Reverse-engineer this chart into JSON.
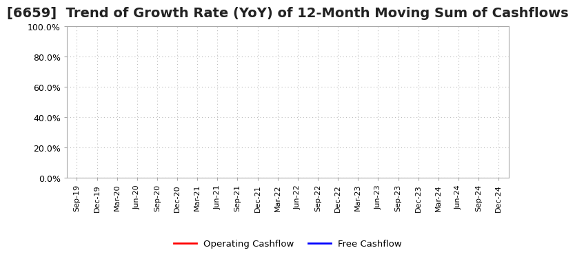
{
  "title": "[6659]  Trend of Growth Rate (YoY) of 12-Month Moving Sum of Cashflows",
  "title_fontsize": 14,
  "ylim": [
    0.0,
    1.0
  ],
  "yticks": [
    0.0,
    0.2,
    0.4,
    0.6,
    0.8,
    1.0
  ],
  "ytick_labels": [
    "0.0%",
    "20.0%",
    "40.0%",
    "60.0%",
    "80.0%",
    "100.0%"
  ],
  "x_labels": [
    "Sep-19",
    "Dec-19",
    "Mar-20",
    "Jun-20",
    "Sep-20",
    "Dec-20",
    "Mar-21",
    "Jun-21",
    "Sep-21",
    "Dec-21",
    "Mar-22",
    "Jun-22",
    "Sep-22",
    "Dec-22",
    "Mar-23",
    "Jun-23",
    "Sep-23",
    "Dec-23",
    "Mar-24",
    "Jun-24",
    "Sep-24",
    "Dec-24"
  ],
  "operating_cashflow_color": "#ff0000",
  "free_cashflow_color": "#0000ff",
  "background_color": "#ffffff",
  "grid_color": "#bbbbbb",
  "legend_labels": [
    "Operating Cashflow",
    "Free Cashflow"
  ],
  "legend_colors": [
    "#ff0000",
    "#0000ff"
  ],
  "spine_color": "#aaaaaa",
  "tick_label_fontsize": 9,
  "x_tick_fontsize": 8
}
